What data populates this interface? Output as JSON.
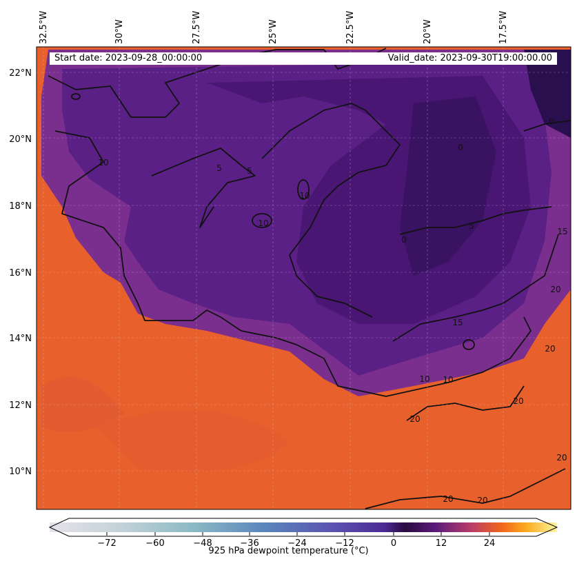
{
  "header": {
    "start_label": "Start date: 2023-09-28_00:00:00",
    "valid_label": "Valid_date: 2023-09-30T19:00:00.00"
  },
  "map": {
    "lon_labels": [
      "32.5°W",
      "30°W",
      "27.5°W",
      "25°W",
      "22.5°W",
      "20°W",
      "17.5°W"
    ],
    "lat_labels": [
      "22°N",
      "20°N",
      "18°N",
      "16°N",
      "14°N",
      "12°N",
      "10°N"
    ],
    "contour_labels": [
      "0",
      "0",
      "0",
      "5",
      "5",
      "5",
      "10",
      "10",
      "10",
      "10",
      "10",
      "15",
      "15",
      "20",
      "20",
      "20",
      "20",
      "20",
      "20",
      "20"
    ],
    "colors": {
      "warm": "#e8602c",
      "mid": "#7a2f8e",
      "dry": "#4a1673",
      "driest": "#2a0f4f"
    }
  },
  "colorbar": {
    "title": "925 hPa dewpoint temperature ($^\\circ$C)",
    "ticks": [
      "−72",
      "−60",
      "−48",
      "−36",
      "−24",
      "−12",
      "0",
      "12",
      "24"
    ]
  }
}
